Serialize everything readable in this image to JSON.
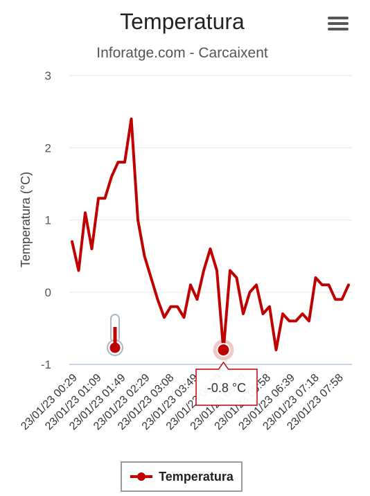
{
  "chart_data": {
    "type": "line",
    "title": "Temperatura",
    "subtitle": "Inforatge.com - Carcaixent",
    "ylabel": "Temperatura (°C)",
    "xlabel": "",
    "ylim": [
      -1,
      3
    ],
    "yticks": [
      "3",
      "2",
      "1",
      "0",
      "-1"
    ],
    "grid": true,
    "legend": "bottom-center",
    "x_tick_labels": [
      "23/01/23 00:29",
      "23/01/23 01:09",
      "23/01/23 01:49",
      "23/01/23 02:29",
      "23/01/23 03:08",
      "23/01/23 03:49",
      "23/01/23 04:29",
      "23/01/23 05:09",
      "23/01/23 05:58",
      "23/01/23 06:39",
      "23/01/23 07:18",
      "23/01/23 07:58"
    ],
    "series": [
      {
        "name": "Temperatura",
        "color": "#c00000",
        "values": [
          0.7,
          0.3,
          1.1,
          0.6,
          1.3,
          1.3,
          1.6,
          1.8,
          1.8,
          2.4,
          1.0,
          0.5,
          0.2,
          -0.1,
          -0.35,
          -0.2,
          -0.2,
          -0.35,
          0.1,
          -0.1,
          0.3,
          0.6,
          0.3,
          -0.8,
          0.3,
          0.2,
          -0.3,
          0.0,
          0.1,
          -0.3,
          -0.2,
          -0.8,
          -0.3,
          -0.4,
          -0.4,
          -0.3,
          -0.4,
          0.2,
          0.1,
          0.1,
          -0.1,
          -0.1,
          0.1
        ]
      }
    ],
    "tooltip": {
      "text": "-0.8 °C",
      "point_index": 23
    }
  },
  "legend": {
    "label": "Temperatura"
  },
  "icons": {
    "menu": "hamburger-menu-icon",
    "thermometer": "thermometer-icon"
  }
}
